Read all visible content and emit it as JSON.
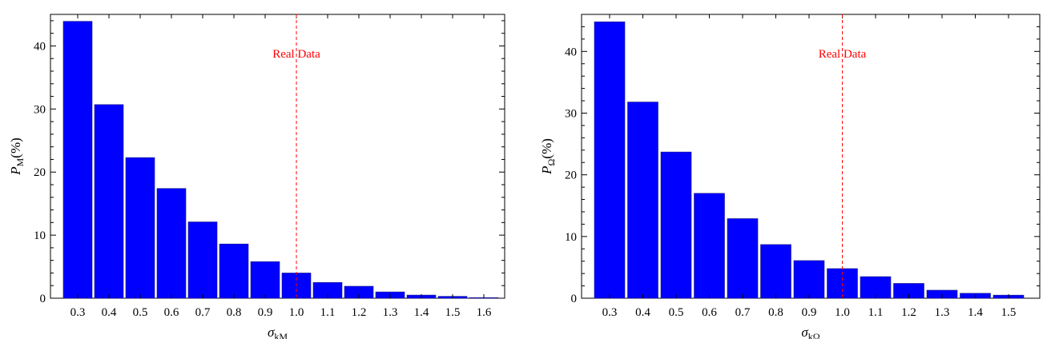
{
  "chart_data": [
    {
      "type": "bar",
      "xlabel": "σkM",
      "ylabel": "PM(%)",
      "ylabel_parts": {
        "main": "P",
        "sub": "M",
        "suffix": "(%)"
      },
      "xlabel_parts": {
        "main": "σ",
        "sub": "kM"
      },
      "categories": [
        "0.3",
        "0.4",
        "0.5",
        "0.6",
        "0.7",
        "0.8",
        "0.9",
        "1.0",
        "1.1",
        "1.2",
        "1.3",
        "1.4",
        "1.5",
        "1.6"
      ],
      "values": [
        43.9,
        30.7,
        22.3,
        17.4,
        12.1,
        8.6,
        5.8,
        4.0,
        2.5,
        1.9,
        1.0,
        0.5,
        0.3,
        0.1
      ],
      "ylim": [
        0,
        45
      ],
      "yticks": [
        0,
        10,
        20,
        30,
        40
      ],
      "bar_color": "#0000ff",
      "annotation": {
        "label": "Real Data",
        "x": "1.0",
        "color": "#ff0000",
        "style": "dashed"
      }
    },
    {
      "type": "bar",
      "xlabel": "σkΩ",
      "ylabel": "PΩ(%)",
      "ylabel_parts": {
        "main": "P",
        "sub": "Ω",
        "suffix": "(%)"
      },
      "xlabel_parts": {
        "main": "σ",
        "sub": "kΩ"
      },
      "categories": [
        "0.3",
        "0.4",
        "0.5",
        "0.6",
        "0.7",
        "0.8",
        "0.9",
        "1.0",
        "1.1",
        "1.2",
        "1.3",
        "1.4",
        "1.5"
      ],
      "values": [
        44.8,
        31.8,
        23.7,
        17.0,
        12.9,
        8.7,
        6.1,
        4.8,
        3.5,
        2.4,
        1.3,
        0.8,
        0.5
      ],
      "ylim": [
        0,
        46
      ],
      "yticks": [
        0,
        10,
        20,
        30,
        40
      ],
      "bar_color": "#0000ff",
      "annotation": {
        "label": "Real Data",
        "x": "1.0",
        "color": "#ff0000",
        "style": "dashed"
      }
    }
  ]
}
